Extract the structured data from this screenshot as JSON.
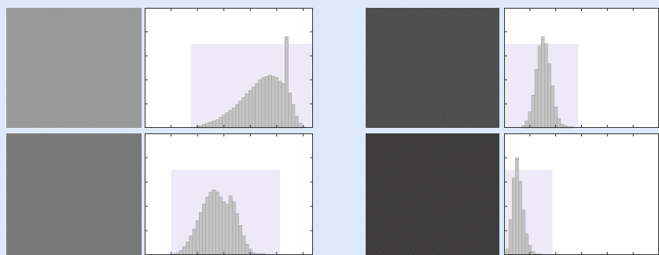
{
  "colors": {
    "page_background": "#dde8fb",
    "plot_background": "#ffffff",
    "bar_fill": "#c4c4c4",
    "bar_stroke": "#9a9a9a",
    "shade_fill": "#eee9f6",
    "axis_color": "#333333"
  },
  "chart_data": [
    {
      "type": "bar",
      "panel": "top-left",
      "xlim": [
        0,
        255
      ],
      "ylim": [
        0,
        1
      ],
      "grid": false,
      "legend": "none",
      "image_gray": "#8f8f8f",
      "shade_range": [
        70,
        255
      ],
      "shade_height": 0.72,
      "x": [
        80,
        85,
        90,
        95,
        100,
        105,
        110,
        115,
        120,
        125,
        130,
        135,
        140,
        145,
        150,
        155,
        160,
        165,
        170,
        175,
        180,
        185,
        190,
        195,
        200,
        205,
        210,
        215,
        220,
        225,
        230,
        235,
        240
      ],
      "values": [
        0.01,
        0.02,
        0.03,
        0.04,
        0.05,
        0.06,
        0.07,
        0.09,
        0.11,
        0.13,
        0.15,
        0.17,
        0.2,
        0.23,
        0.26,
        0.29,
        0.32,
        0.35,
        0.38,
        0.41,
        0.43,
        0.44,
        0.45,
        0.44,
        0.43,
        0.4,
        0.38,
        0.78,
        0.3,
        0.2,
        0.1,
        0.04,
        0.01
      ]
    },
    {
      "type": "bar",
      "panel": "top-right",
      "xlim": [
        0,
        255
      ],
      "ylim": [
        0,
        1
      ],
      "grid": false,
      "legend": "none",
      "image_gray": "#3d3d3d",
      "shade_range": [
        0,
        115
      ],
      "shade_height": 0.72,
      "x": [
        30,
        35,
        40,
        45,
        50,
        55,
        60,
        65,
        70,
        75,
        80,
        85,
        90,
        95,
        100,
        105
      ],
      "values": [
        0.02,
        0.06,
        0.14,
        0.28,
        0.5,
        0.7,
        0.78,
        0.72,
        0.55,
        0.36,
        0.18,
        0.08,
        0.03,
        0.02,
        0.01,
        0.01
      ]
    },
    {
      "type": "bar",
      "panel": "bottom-left",
      "xlim": [
        0,
        255
      ],
      "ylim": [
        0,
        1
      ],
      "grid": false,
      "legend": "none",
      "image_gray": "#6b6b6b",
      "shade_range": [
        40,
        205
      ],
      "shade_height": 0.72,
      "x": [
        45,
        50,
        55,
        60,
        65,
        70,
        75,
        80,
        85,
        90,
        95,
        100,
        105,
        110,
        115,
        120,
        125,
        130,
        135,
        140,
        145,
        150,
        155,
        160,
        165,
        170,
        175,
        180
      ],
      "values": [
        0.01,
        0.02,
        0.04,
        0.07,
        0.11,
        0.16,
        0.22,
        0.29,
        0.36,
        0.43,
        0.49,
        0.53,
        0.55,
        0.53,
        0.49,
        0.45,
        0.43,
        0.5,
        0.45,
        0.35,
        0.25,
        0.16,
        0.09,
        0.05,
        0.02,
        0.01,
        0.01,
        0.01
      ]
    },
    {
      "type": "bar",
      "panel": "bottom-right",
      "xlim": [
        0,
        255
      ],
      "ylim": [
        0,
        1
      ],
      "grid": false,
      "legend": "none",
      "image_gray": "#2a2828",
      "shade_range": [
        0,
        75
      ],
      "shade_height": 0.72,
      "x": [
        5,
        10,
        15,
        20,
        25,
        30,
        35,
        40,
        45,
        50,
        55
      ],
      "values": [
        0.05,
        0.3,
        0.65,
        0.82,
        0.62,
        0.38,
        0.18,
        0.08,
        0.03,
        0.01,
        0.01
      ]
    }
  ]
}
